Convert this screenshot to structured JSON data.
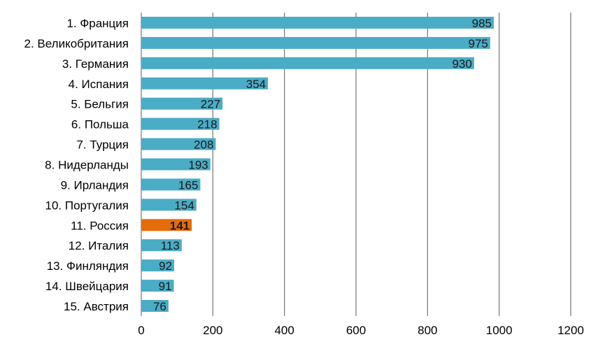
{
  "chart_data": {
    "type": "bar",
    "orientation": "horizontal",
    "title": "",
    "xlabel": "",
    "ylabel": "",
    "categories": [
      "1. Франция",
      "2. Великобритания",
      "3. Германия",
      "4. Испания",
      "5. Бельгия",
      "6. Польша",
      "7. Турция",
      "8. Нидерланды",
      "9. Ирландия",
      "10. Португалия",
      "11. Россия",
      "12. Италия",
      "13. Финляндия",
      "14. Швейцария",
      "15. Австрия"
    ],
    "values": [
      985,
      975,
      930,
      354,
      227,
      218,
      208,
      193,
      165,
      154,
      141,
      113,
      92,
      91,
      76
    ],
    "data_labels": [
      "985",
      "975",
      "930",
      "354",
      "227",
      "218",
      "208",
      "193",
      "165",
      "154",
      "141",
      "113",
      "92",
      "91",
      "76"
    ],
    "highlight_index": 10,
    "xlim": [
      0,
      1200
    ],
    "x_ticks": [
      0,
      200,
      400,
      600,
      800,
      1000,
      1200
    ],
    "x_tick_labels": [
      "0",
      "200",
      "400",
      "600",
      "800",
      "1000",
      "1200"
    ],
    "grid": "vertical",
    "legend": "none",
    "colors": {
      "bar": "#4bacc6",
      "highlight": "#e46c0a",
      "grid": "#808080",
      "bar_outline": "#000000"
    }
  }
}
